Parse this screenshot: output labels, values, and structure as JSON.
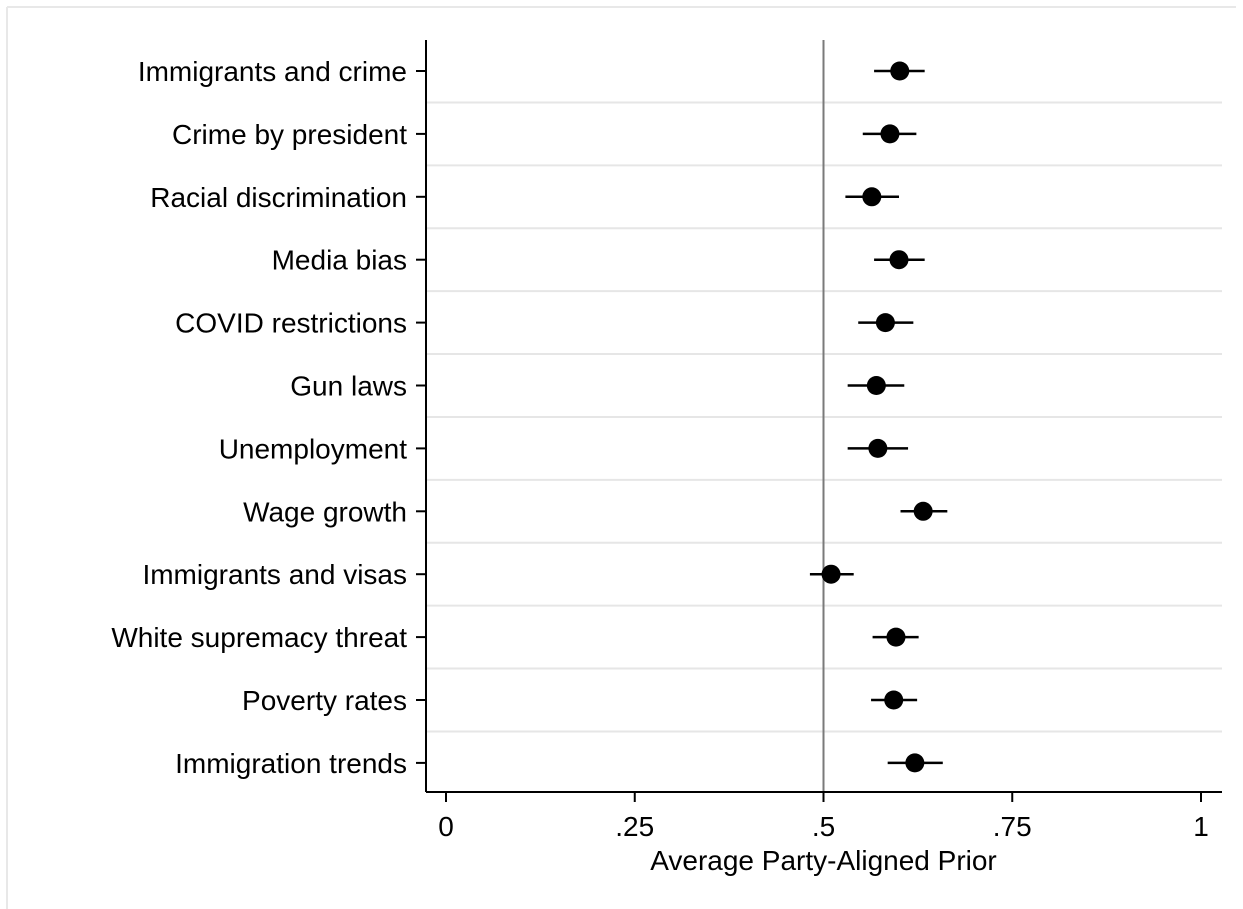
{
  "chart_data": {
    "type": "scatter",
    "orientation": "horizontal",
    "xlabel": "Average Party-Aligned Prior",
    "xlim": [
      0,
      1
    ],
    "xticks": [
      0,
      0.25,
      0.5,
      0.75,
      1
    ],
    "xtick_labels": [
      "0",
      ".25",
      ".5",
      ".75",
      "1"
    ],
    "reference_line": 0.5,
    "grid": true,
    "categories": [
      "Immigrants and crime",
      "Crime by president",
      "Racial discrimination",
      "Media bias",
      "COVID restrictions",
      "Gun laws",
      "Unemployment",
      "Wage growth",
      "Immigrants and visas",
      "White supremacy threat",
      "Poverty rates",
      "Immigration trends"
    ],
    "estimates": [
      0.601,
      0.588,
      0.564,
      0.6,
      0.582,
      0.57,
      0.572,
      0.632,
      0.51,
      0.596,
      0.593,
      0.621
    ],
    "ci_lower": [
      0.567,
      0.552,
      0.529,
      0.567,
      0.546,
      0.532,
      0.532,
      0.602,
      0.482,
      0.565,
      0.563,
      0.585
    ],
    "ci_upper": [
      0.634,
      0.623,
      0.6,
      0.634,
      0.619,
      0.607,
      0.612,
      0.664,
      0.54,
      0.626,
      0.624,
      0.658
    ],
    "colors": {
      "marker": "#000000",
      "reference": "#7a7a7a",
      "grid": "#e6e6e6"
    }
  }
}
